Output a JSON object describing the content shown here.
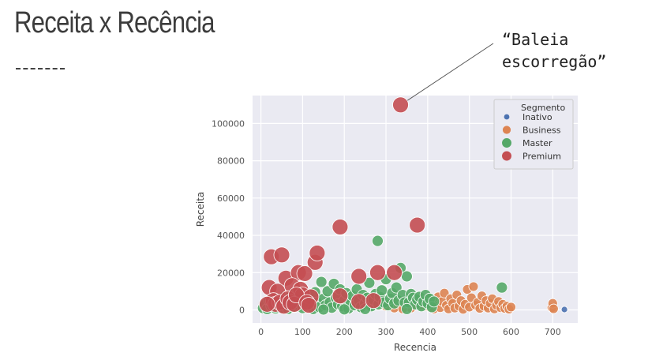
{
  "slide": {
    "title": "Receita x Recência",
    "annotation": "“Baleia\nescorregão”"
  },
  "chart_data": {
    "type": "scatter",
    "xlabel": "Recencia",
    "ylabel": "Receita",
    "xlim": [
      -20,
      760
    ],
    "ylim": [
      -7000,
      115000
    ],
    "xticks": [
      0,
      100,
      200,
      300,
      400,
      500,
      600,
      700
    ],
    "yticks": [
      0,
      20000,
      40000,
      60000,
      80000,
      100000
    ],
    "grid": true,
    "legend": {
      "title": "Segmento",
      "placement": "top-right",
      "entries": [
        "Inativo",
        "Business",
        "Master",
        "Premium"
      ]
    },
    "series": [
      {
        "name": "Inativo",
        "color": "#4c72b0",
        "size": 4,
        "points": [
          [
            728,
            200
          ]
        ]
      },
      {
        "name": "Business",
        "color": "#dd8452",
        "size": 6,
        "points": [
          [
            395,
            2000
          ],
          [
            400,
            6000
          ],
          [
            405,
            1500
          ],
          [
            410,
            4000
          ],
          [
            415,
            500
          ],
          [
            420,
            3000
          ],
          [
            425,
            7000
          ],
          [
            430,
            1200
          ],
          [
            435,
            4500
          ],
          [
            440,
            9000
          ],
          [
            445,
            2500
          ],
          [
            450,
            500
          ],
          [
            455,
            6000
          ],
          [
            460,
            3500
          ],
          [
            465,
            1000
          ],
          [
            470,
            8000
          ],
          [
            475,
            2000
          ],
          [
            480,
            5000
          ],
          [
            485,
            300
          ],
          [
            490,
            3000
          ],
          [
            495,
            11000
          ],
          [
            500,
            1500
          ],
          [
            505,
            6500
          ],
          [
            510,
            12500
          ],
          [
            515,
            2500
          ],
          [
            520,
            4000
          ],
          [
            525,
            800
          ],
          [
            530,
            7500
          ],
          [
            535,
            2000
          ],
          [
            540,
            5000
          ],
          [
            545,
            1000
          ],
          [
            550,
            3500
          ],
          [
            555,
            6000
          ],
          [
            560,
            500
          ],
          [
            565,
            2500
          ],
          [
            570,
            4500
          ],
          [
            575,
            1200
          ],
          [
            580,
            3000
          ],
          [
            585,
            800
          ],
          [
            590,
            2000
          ],
          [
            595,
            400
          ],
          [
            600,
            1500
          ],
          [
            698,
            1200
          ],
          [
            700,
            3500
          ],
          [
            702,
            600
          ],
          [
            360,
            1000
          ],
          [
            370,
            3000
          ],
          [
            380,
            6000
          ],
          [
            385,
            2500
          ],
          [
            300,
            2000
          ],
          [
            320,
            1000
          ],
          [
            340,
            500
          ]
        ]
      },
      {
        "name": "Master",
        "color": "#55a868",
        "size": 7,
        "points": [
          [
            5,
            1000
          ],
          [
            10,
            3000
          ],
          [
            15,
            500
          ],
          [
            20,
            5000
          ],
          [
            25,
            2000
          ],
          [
            30,
            4500
          ],
          [
            35,
            800
          ],
          [
            40,
            6000
          ],
          [
            45,
            2500
          ],
          [
            50,
            1200
          ],
          [
            55,
            7000
          ],
          [
            60,
            3000
          ],
          [
            65,
            500
          ],
          [
            70,
            4000
          ],
          [
            75,
            8500
          ],
          [
            80,
            1500
          ],
          [
            85,
            6000
          ],
          [
            90,
            2500
          ],
          [
            95,
            3500
          ],
          [
            100,
            1000
          ],
          [
            105,
            5000
          ],
          [
            110,
            2000
          ],
          [
            115,
            7500
          ],
          [
            120,
            3000
          ],
          [
            125,
            500
          ],
          [
            130,
            9500
          ],
          [
            135,
            4000
          ],
          [
            140,
            1500
          ],
          [
            145,
            15000
          ],
          [
            150,
            6000
          ],
          [
            155,
            2500
          ],
          [
            160,
            10000
          ],
          [
            165,
            4000
          ],
          [
            170,
            1200
          ],
          [
            175,
            14000
          ],
          [
            180,
            6500
          ],
          [
            185,
            3000
          ],
          [
            190,
            11000
          ],
          [
            195,
            2000
          ],
          [
            200,
            5000
          ],
          [
            205,
            9000
          ],
          [
            210,
            800
          ],
          [
            215,
            4000
          ],
          [
            220,
            7500
          ],
          [
            225,
            2500
          ],
          [
            230,
            11000
          ],
          [
            235,
            5000
          ],
          [
            240,
            1500
          ],
          [
            245,
            8000
          ],
          [
            250,
            3500
          ],
          [
            255,
            6500
          ],
          [
            260,
            14500
          ],
          [
            265,
            2000
          ],
          [
            270,
            5500
          ],
          [
            275,
            8500
          ],
          [
            280,
            37000
          ],
          [
            282,
            3000
          ],
          [
            285,
            7000
          ],
          [
            290,
            10500
          ],
          [
            295,
            4000
          ],
          [
            300,
            16500
          ],
          [
            305,
            2500
          ],
          [
            310,
            6000
          ],
          [
            315,
            9000
          ],
          [
            320,
            3500
          ],
          [
            325,
            12000
          ],
          [
            330,
            5000
          ],
          [
            335,
            22500
          ],
          [
            340,
            8000
          ],
          [
            345,
            4000
          ],
          [
            350,
            18000
          ],
          [
            355,
            4000
          ],
          [
            360,
            8500
          ],
          [
            365,
            6500
          ],
          [
            370,
            3000
          ],
          [
            375,
            5500
          ],
          [
            380,
            7000
          ],
          [
            385,
            2000
          ],
          [
            390,
            4500
          ],
          [
            395,
            8000
          ],
          [
            400,
            3500
          ],
          [
            405,
            6000
          ],
          [
            410,
            1500
          ],
          [
            415,
            4500
          ],
          [
            578,
            12000
          ],
          [
            350,
            500
          ],
          [
            250,
            500
          ],
          [
            150,
            200
          ],
          [
            200,
            300
          ]
        ]
      },
      {
        "name": "Premium",
        "color": "#c44e52",
        "size": 10,
        "points": [
          [
            335,
            110000
          ],
          [
            375,
            45500
          ],
          [
            190,
            44500
          ],
          [
            25,
            28500
          ],
          [
            50,
            29500
          ],
          [
            130,
            25500
          ],
          [
            135,
            30500
          ],
          [
            60,
            17000
          ],
          [
            90,
            20000
          ],
          [
            105,
            19500
          ],
          [
            235,
            18000
          ],
          [
            280,
            20000
          ],
          [
            320,
            20000
          ],
          [
            20,
            12000
          ],
          [
            40,
            10000
          ],
          [
            75,
            13000
          ],
          [
            95,
            11000
          ],
          [
            100,
            8000
          ],
          [
            120,
            7000
          ],
          [
            30,
            5000
          ],
          [
            35,
            3000
          ],
          [
            45,
            4000
          ],
          [
            55,
            2000
          ],
          [
            65,
            6000
          ],
          [
            70,
            4000
          ],
          [
            80,
            3000
          ],
          [
            85,
            8000
          ],
          [
            110,
            4000
          ],
          [
            115,
            2500
          ],
          [
            15,
            3000
          ],
          [
            190,
            7500
          ],
          [
            235,
            4500
          ],
          [
            270,
            5000
          ]
        ]
      }
    ]
  }
}
